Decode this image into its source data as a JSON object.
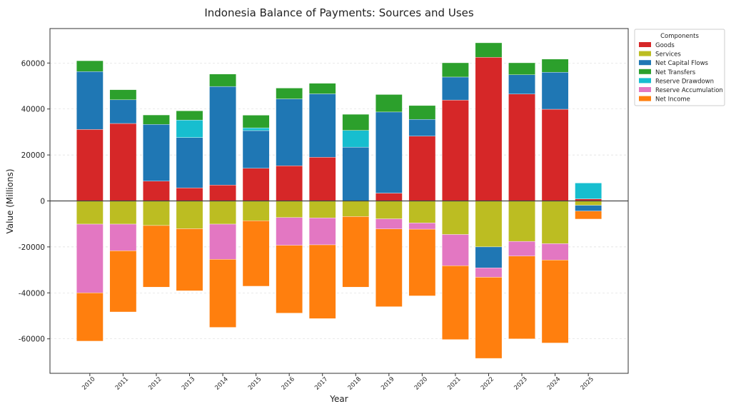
{
  "chart_data": {
    "type": "bar",
    "stacked": true,
    "title": "Indonesia Balance of Payments: Sources and Uses",
    "xlabel": "Year",
    "ylabel": "Value (Millions)",
    "ylim": [
      -75000,
      75000
    ],
    "xlim": [
      2008.8,
      2026.2
    ],
    "yticks": [
      -60000,
      -40000,
      -20000,
      0,
      20000,
      40000,
      60000
    ],
    "grid": true,
    "legend": {
      "title": "Components",
      "placement": "outside-top-right"
    },
    "categories": [
      "2010",
      "2011",
      "2012",
      "2013",
      "2014",
      "2015",
      "2016",
      "2017",
      "2018",
      "2019",
      "2020",
      "2021",
      "2022",
      "2023",
      "2024",
      "2025"
    ],
    "series": [
      {
        "name": "Goods",
        "color": "#d62728",
        "values": [
          31100,
          33700,
          8600,
          5700,
          6900,
          14200,
          15300,
          19000,
          0,
          3400,
          28200,
          43900,
          62500,
          46500,
          39900,
          900
        ]
      },
      {
        "name": "Services",
        "color": "#bcbd22",
        "values": [
          -10100,
          -10100,
          -10700,
          -12100,
          -10100,
          -8600,
          -7200,
          -7400,
          -6800,
          -7800,
          -9600,
          -14600,
          -20000,
          -17600,
          -18600,
          -1900
        ]
      },
      {
        "name": "Net Capital Flows",
        "color": "#1f77b4",
        "values": [
          25200,
          10300,
          24700,
          21900,
          42900,
          16400,
          29100,
          27600,
          23400,
          35300,
          7300,
          10000,
          -9100,
          8400,
          16100,
          -2500
        ]
      },
      {
        "name": "Net Transfers",
        "color": "#2ca02c",
        "values": [
          4700,
          4400,
          4100,
          4000,
          5400,
          5500,
          4700,
          4600,
          7000,
          7600,
          6000,
          6200,
          6300,
          5200,
          5700,
          0
        ]
      },
      {
        "name": "Reserve Drawdown",
        "color": "#17becf",
        "values": [
          0,
          0,
          0,
          7600,
          0,
          1200,
          0,
          0,
          7300,
          0,
          0,
          0,
          0,
          0,
          0,
          6900
        ]
      },
      {
        "name": "Reserve Accumulation",
        "color": "#e377c2",
        "values": [
          -29900,
          -11600,
          0,
          0,
          -15300,
          0,
          -12100,
          -11700,
          0,
          -4400,
          -2700,
          -13600,
          -4100,
          -6400,
          -7100,
          0
        ]
      },
      {
        "name": "Net Income",
        "color": "#ff7f0e",
        "values": [
          -21000,
          -26600,
          -26800,
          -27000,
          -29600,
          -28500,
          -29500,
          -32100,
          -30700,
          -33800,
          -29000,
          -32100,
          -35300,
          -36000,
          -36100,
          -3500
        ]
      }
    ]
  }
}
